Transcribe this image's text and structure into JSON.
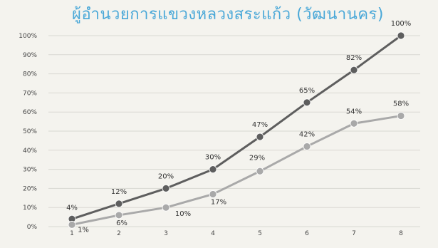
{
  "chart_data": {
    "type": "line",
    "title": "ผู้อำนวยการแขวงหลวงสระแก้ว (วัฒนานคร)",
    "xlabel": "",
    "ylabel": "",
    "categories": [
      "1",
      "2",
      "3",
      "4",
      "5",
      "6",
      "7",
      "8"
    ],
    "ylim": [
      0,
      100
    ],
    "yticks": [
      "0%",
      "10%",
      "20%",
      "30%",
      "40%",
      "50%",
      "60%",
      "70%",
      "80%",
      "90%",
      "100%"
    ],
    "grid": true,
    "series": [
      {
        "color": "#5e5e5e",
        "values": [
          4,
          12,
          20,
          30,
          47,
          65,
          82,
          100
        ],
        "labels": [
          "4%",
          "12%",
          "20%",
          "30%",
          "47%",
          "65%",
          "82%",
          "100%"
        ]
      },
      {
        "color": "#a9a9a9",
        "values": [
          1,
          6,
          10,
          17,
          29,
          42,
          54,
          58
        ],
        "labels": [
          "1%",
          "6%",
          "10%",
          "17%",
          "29%",
          "42%",
          "54%",
          "58%"
        ]
      }
    ]
  }
}
